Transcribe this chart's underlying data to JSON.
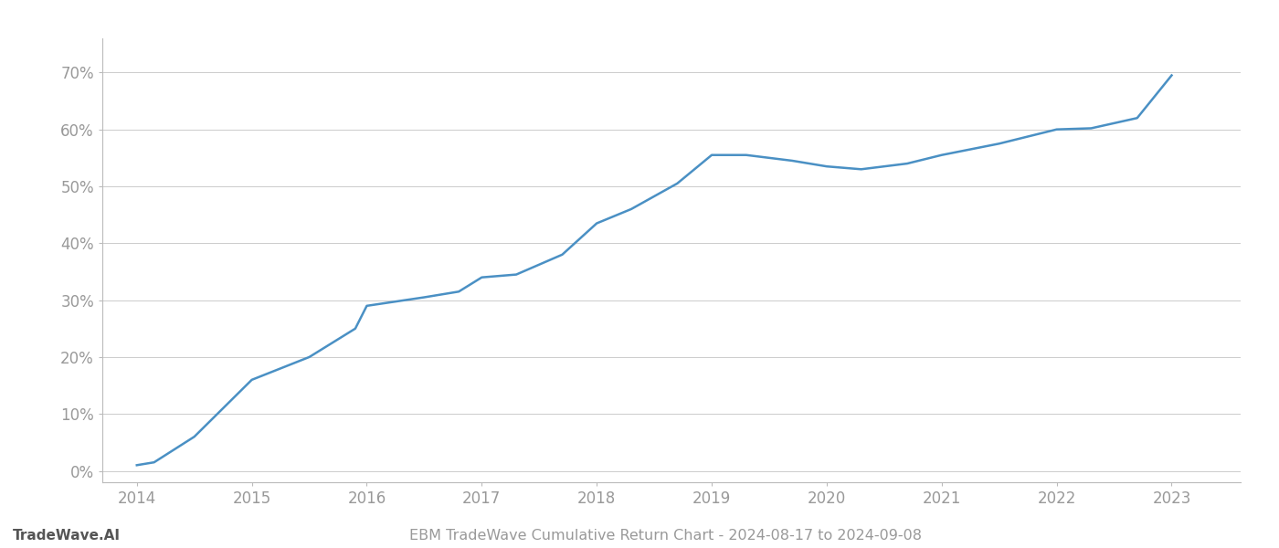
{
  "title": "EBM TradeWave Cumulative Return Chart - 2024-08-17 to 2024-09-08",
  "watermark": "TradeWave.AI",
  "line_color": "#4a90c4",
  "background_color": "#ffffff",
  "grid_color": "#cccccc",
  "x_values": [
    2014,
    2014.15,
    2014.5,
    2015.0,
    2015.5,
    2015.9,
    2016.0,
    2016.5,
    2016.8,
    2017.0,
    2017.3,
    2017.7,
    2018.0,
    2018.3,
    2018.7,
    2019.0,
    2019.3,
    2019.7,
    2020.0,
    2020.3,
    2020.7,
    2021.0,
    2021.5,
    2022.0,
    2022.3,
    2022.7,
    2023.0
  ],
  "y_values": [
    1.0,
    1.5,
    6.0,
    16.0,
    20.0,
    25.0,
    29.0,
    30.5,
    31.5,
    34.0,
    34.5,
    38.0,
    43.5,
    46.0,
    50.5,
    55.5,
    55.5,
    54.5,
    53.5,
    53.0,
    54.0,
    55.5,
    57.5,
    60.0,
    60.2,
    62.0,
    69.5
  ],
  "xlim": [
    2013.7,
    2023.6
  ],
  "ylim": [
    -2,
    76
  ],
  "yticks": [
    0,
    10,
    20,
    30,
    40,
    50,
    60,
    70
  ],
  "xticks": [
    2014,
    2015,
    2016,
    2017,
    2018,
    2019,
    2020,
    2021,
    2022,
    2023
  ],
  "tick_label_color": "#999999",
  "spine_color": "#bbbbbb",
  "title_color": "#999999",
  "watermark_color": "#555555",
  "line_width": 1.8,
  "title_fontsize": 11.5,
  "tick_fontsize": 12,
  "watermark_fontsize": 11
}
